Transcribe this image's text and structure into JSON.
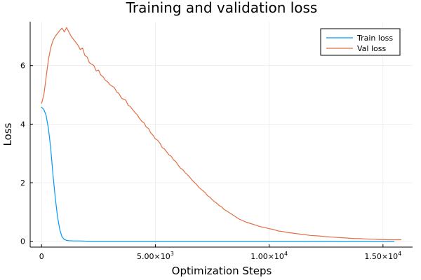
{
  "chart_data": {
    "type": "line",
    "title": "Training and validation loss",
    "xlabel": "Optimization Steps",
    "ylabel": "Loss",
    "xlim": [
      -500,
      16300
    ],
    "ylim": [
      -0.2,
      7.5
    ],
    "grid": true,
    "legend_position": "top-right",
    "x_ticks": [
      {
        "value": 0,
        "label": "0",
        "mant": "",
        "exp": ""
      },
      {
        "value": 5000,
        "label": "",
        "mant": "5.00×10",
        "exp": "3"
      },
      {
        "value": 10000,
        "label": "",
        "mant": "1.00×10",
        "exp": "4"
      },
      {
        "value": 15000,
        "label": "",
        "mant": "1.50×10",
        "exp": "4"
      }
    ],
    "y_ticks": [
      {
        "value": 0,
        "label": "0"
      },
      {
        "value": 2,
        "label": "2"
      },
      {
        "value": 4,
        "label": "4"
      },
      {
        "value": 6,
        "label": "6"
      }
    ],
    "series": [
      {
        "name": "Train loss",
        "color": "#009af9",
        "x": [
          0,
          100,
          200,
          300,
          400,
          500,
          600,
          700,
          800,
          900,
          1000,
          1100,
          1200,
          1400,
          1700,
          2000,
          3000,
          5000,
          8000,
          11000,
          14000,
          15500
        ],
        "y": [
          4.58,
          4.5,
          4.3,
          3.85,
          3.2,
          2.3,
          1.5,
          0.85,
          0.4,
          0.15,
          0.06,
          0.03,
          0.02,
          0.01,
          0.01,
          0.0,
          0.0,
          0.0,
          0.0,
          0.0,
          0.0,
          0.0
        ]
      },
      {
        "name": "Val loss",
        "color": "#e26f46",
        "x": [
          0,
          100,
          200,
          300,
          400,
          500,
          600,
          700,
          800,
          900,
          1000,
          1100,
          1200,
          1300,
          1400,
          1500,
          1600,
          1700,
          1800,
          1900,
          2000,
          2100,
          2200,
          2300,
          2400,
          2500,
          2600,
          2700,
          2800,
          2900,
          3000,
          3100,
          3200,
          3300,
          3400,
          3500,
          3600,
          3700,
          3800,
          3900,
          4000,
          4100,
          4200,
          4300,
          4400,
          4500,
          4600,
          4700,
          4800,
          4900,
          5000,
          5100,
          5200,
          5300,
          5400,
          5500,
          5600,
          5700,
          5800,
          5900,
          6000,
          6100,
          6200,
          6300,
          6400,
          6500,
          6600,
          6700,
          6800,
          6900,
          7000,
          7100,
          7200,
          7300,
          7400,
          7500,
          7600,
          7700,
          7800,
          7900,
          8000,
          8100,
          8200,
          8300,
          8400,
          8500,
          8600,
          8700,
          8800,
          8900,
          9000,
          9200,
          9400,
          9600,
          9800,
          10000,
          10200,
          10400,
          10600,
          10800,
          11000,
          11200,
          11400,
          11600,
          11800,
          12000,
          12200,
          12400,
          12600,
          12800,
          13000,
          13200,
          13400,
          13600,
          13800,
          14000,
          14200,
          14400,
          14600,
          14800,
          15000,
          15200,
          15400,
          15600,
          15800
        ],
        "y": [
          4.7,
          5.0,
          5.6,
          6.2,
          6.6,
          6.85,
          7.0,
          7.1,
          7.2,
          7.28,
          7.15,
          7.3,
          7.15,
          7.0,
          6.9,
          6.8,
          6.7,
          6.55,
          6.6,
          6.35,
          6.3,
          6.1,
          6.05,
          6.0,
          5.82,
          5.85,
          5.68,
          5.62,
          5.5,
          5.45,
          5.35,
          5.3,
          5.25,
          5.1,
          5.05,
          4.9,
          4.85,
          4.82,
          4.65,
          4.6,
          4.5,
          4.4,
          4.32,
          4.2,
          4.1,
          4.05,
          3.9,
          3.85,
          3.7,
          3.62,
          3.5,
          3.45,
          3.35,
          3.2,
          3.15,
          3.05,
          2.95,
          2.9,
          2.78,
          2.72,
          2.6,
          2.5,
          2.45,
          2.35,
          2.28,
          2.2,
          2.1,
          2.02,
          1.95,
          1.85,
          1.78,
          1.72,
          1.65,
          1.55,
          1.5,
          1.42,
          1.35,
          1.3,
          1.22,
          1.18,
          1.1,
          1.05,
          1.0,
          0.95,
          0.9,
          0.85,
          0.8,
          0.75,
          0.72,
          0.68,
          0.65,
          0.6,
          0.55,
          0.5,
          0.47,
          0.43,
          0.4,
          0.35,
          0.33,
          0.3,
          0.28,
          0.26,
          0.24,
          0.22,
          0.2,
          0.19,
          0.18,
          0.16,
          0.15,
          0.14,
          0.13,
          0.12,
          0.11,
          0.1,
          0.09,
          0.09,
          0.08,
          0.07,
          0.07,
          0.06,
          0.06,
          0.05,
          0.05,
          0.05,
          0.05
        ]
      }
    ]
  }
}
